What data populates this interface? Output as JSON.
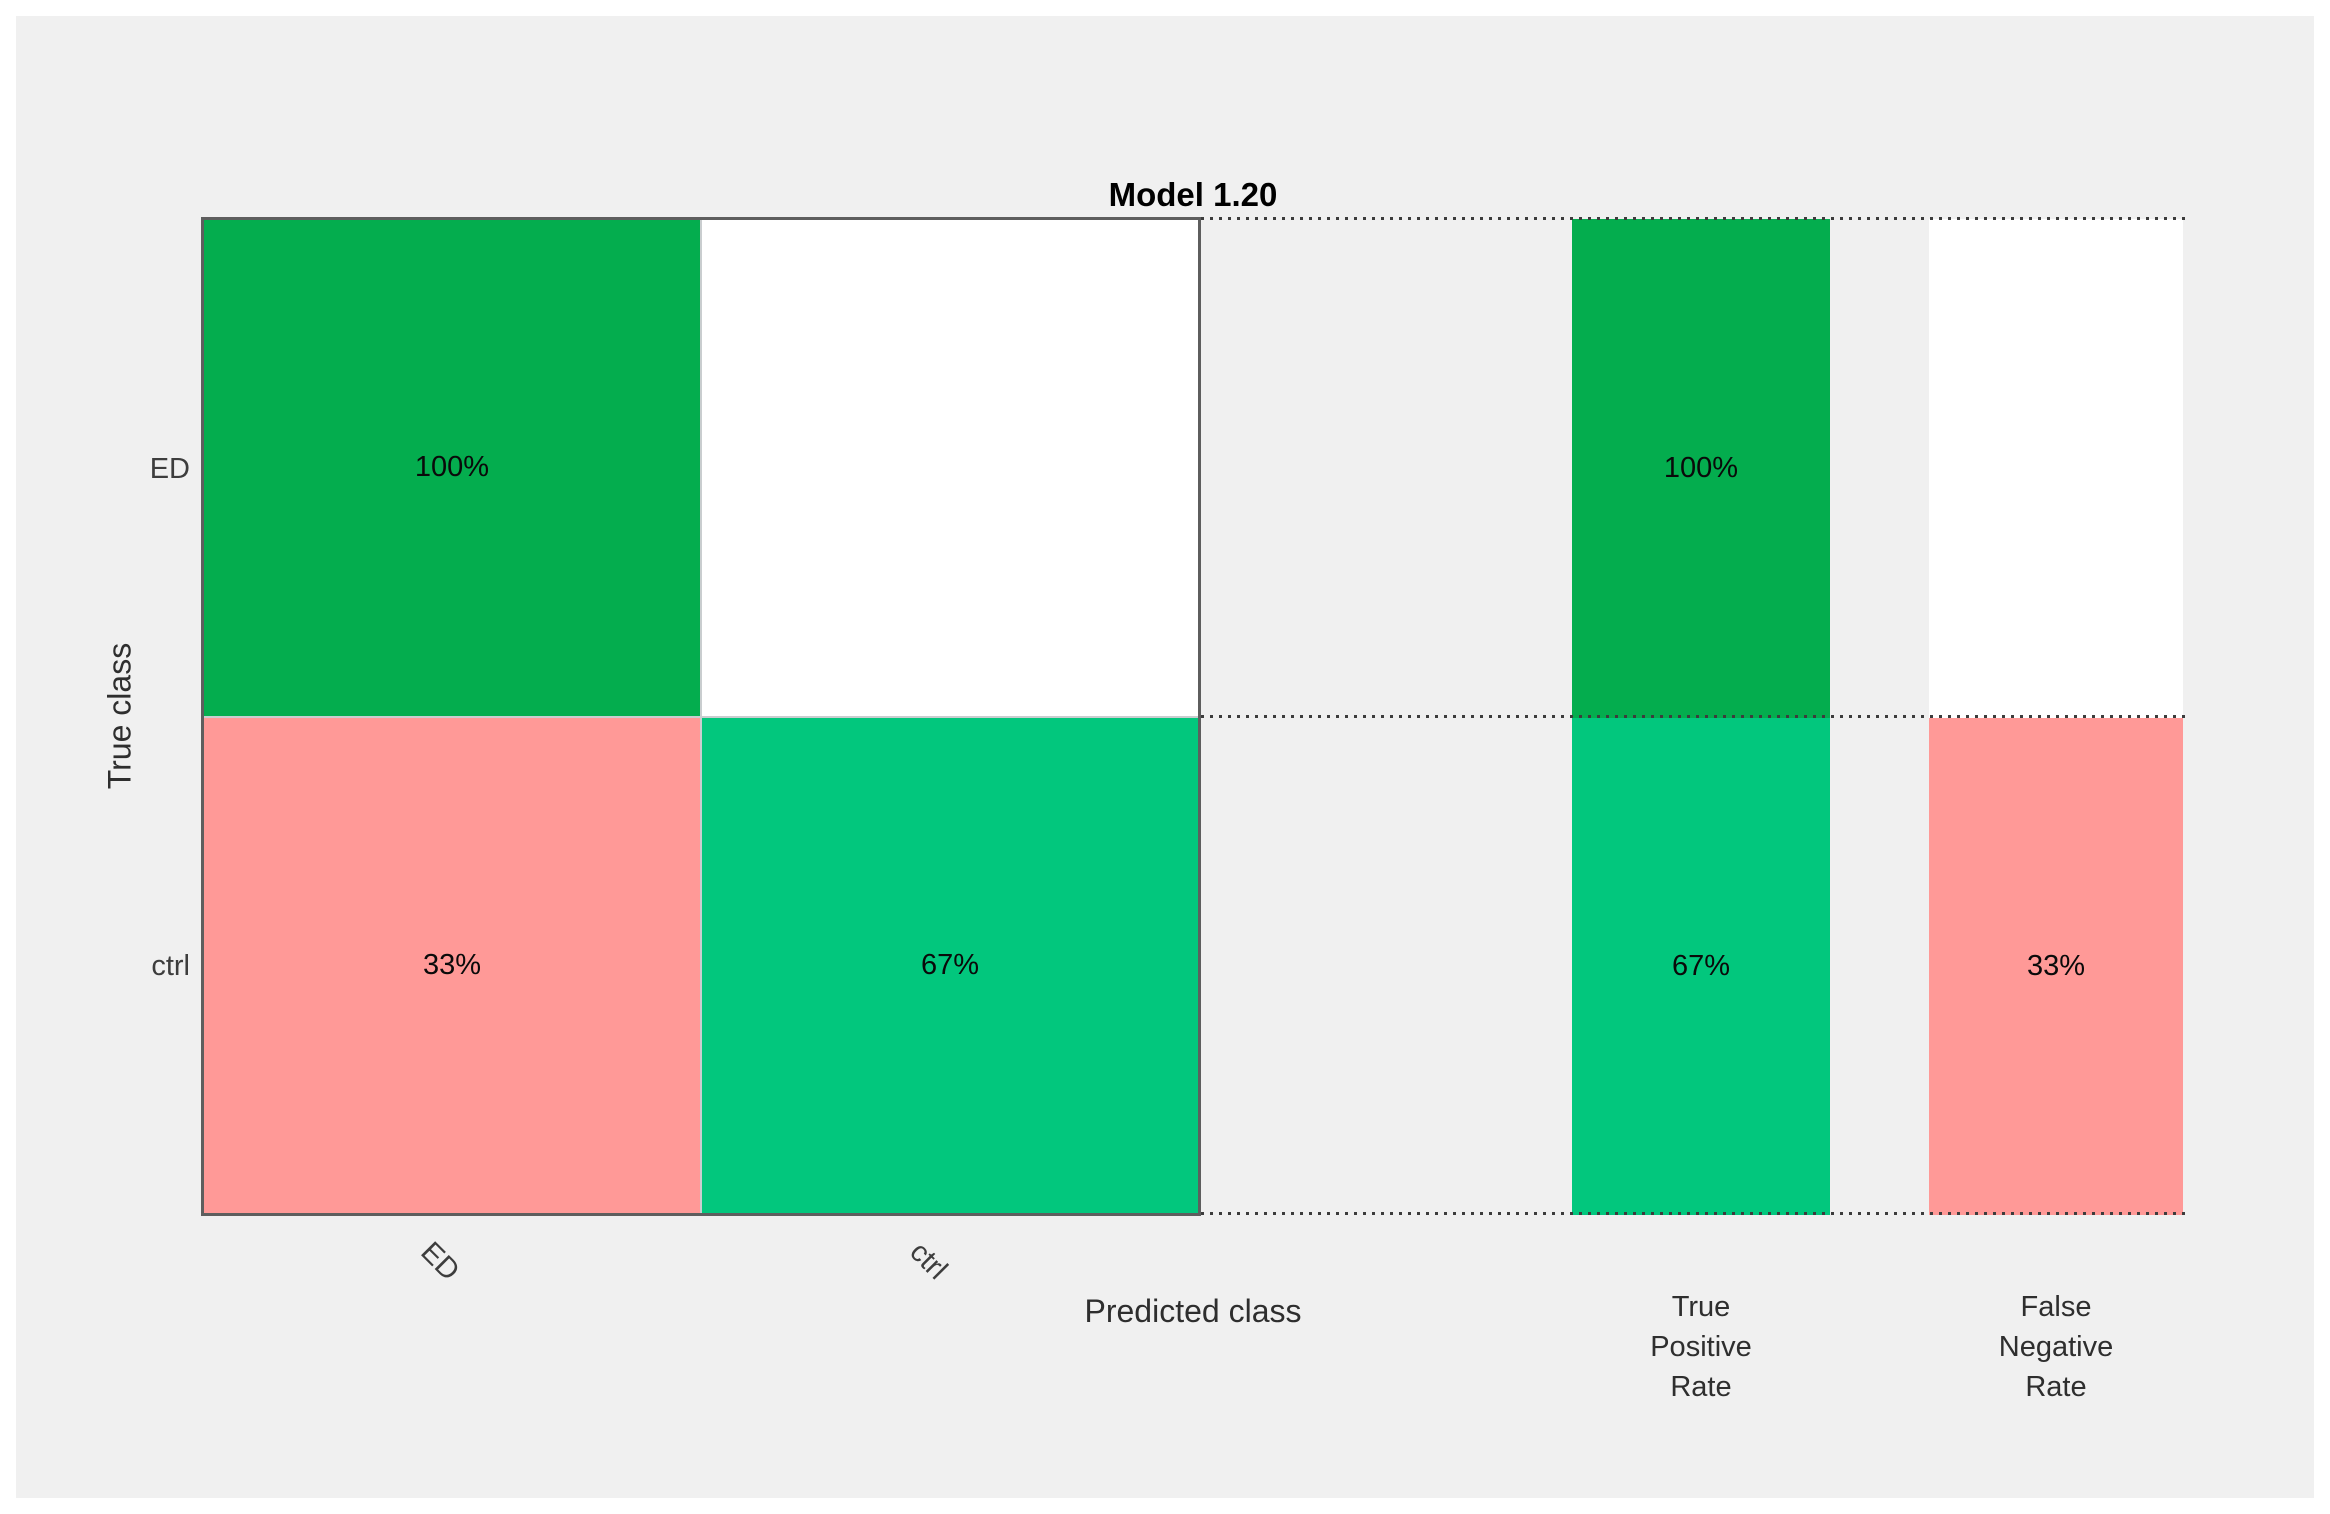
{
  "title": "Model 1.20",
  "axes": {
    "y_label": "True class",
    "x_label": "Predicted class"
  },
  "classes": {
    "row": [
      "ED",
      "ctrl"
    ],
    "col": [
      "ED",
      "ctrl"
    ]
  },
  "matrix": {
    "r0c0": "100%",
    "r0c1": "",
    "r1c0": "33%",
    "r1c1": "67%"
  },
  "summary": {
    "tpr": {
      "title_lines": [
        "True",
        "Positive",
        "Rate"
      ],
      "r0": "100%",
      "r1": "67%"
    },
    "fnr": {
      "title_lines": [
        "False",
        "Negative",
        "Rate"
      ],
      "r0": "",
      "r1": "33%"
    }
  },
  "colors": {
    "green_high": "#04AD4E",
    "green_mid": "#02C77D",
    "pink": "#FF9997",
    "empty_cell": "#FFFFFF",
    "figure_background": "#F0F0F0"
  },
  "chart_data": {
    "type": "heatmap",
    "title": "Model 1.20",
    "xlabel": "Predicted class",
    "ylabel": "True class",
    "x_categories": [
      "ED",
      "ctrl"
    ],
    "y_categories": [
      "ED",
      "ctrl"
    ],
    "values_percent": [
      [
        100,
        0
      ],
      [
        33,
        67
      ]
    ],
    "cell_labels": [
      [
        "100%",
        ""
      ],
      [
        "33%",
        "67%"
      ]
    ],
    "row_summary": {
      "true_positive_rate_percent": [
        100,
        67
      ],
      "false_negative_rate_percent": [
        0,
        33
      ],
      "tpr_labels": [
        "100%",
        "67%"
      ],
      "fnr_labels": [
        "",
        "33%"
      ],
      "tpr_title": "True Positive Rate",
      "fnr_title": "False Negative Rate"
    },
    "legend": "none",
    "grid": "dotted row dividers right of matrix",
    "colors": {
      "diagonal_high": "#04AD4E",
      "diagonal_mid": "#02C77D",
      "off_diagonal": "#FF9997",
      "zero_cell": "#FFFFFF",
      "background": "#F0F0F0"
    }
  }
}
